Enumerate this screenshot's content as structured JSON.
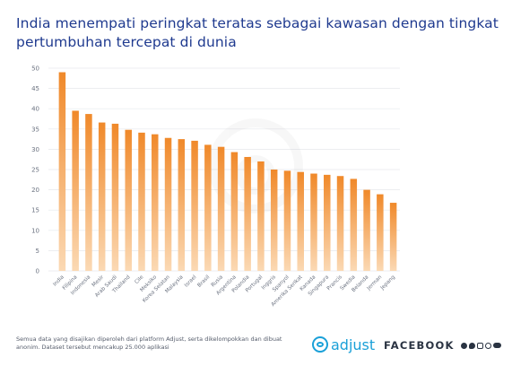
{
  "title": "India menempati peringkat teratas sebagai kawasan dengan tingkat pertumbuhan tercepat di dunia",
  "footnote": "Semua data yang disajikan diperoleh dari platform Adjust, serta dikelompokkan dan dibuat anonim. Dataset tersebut mencakup 25.000 aplikasi",
  "brand": {
    "adjust": "adjust",
    "facebook": "FACEBOOK",
    "accent": "#f39a3b",
    "title_color": "#1f3a8f"
  },
  "icons": [
    "adjust-logo-icon",
    "facebook-icon",
    "messenger-icon",
    "instagram-icon",
    "whatsapp-icon",
    "meta-icon"
  ],
  "chart_data": {
    "type": "bar",
    "title": "India menempati peringkat teratas sebagai kawasan dengan tingkat pertumbuhan tercepat di dunia",
    "xlabel": "",
    "ylabel": "",
    "ylim": [
      0,
      50
    ],
    "yticks": [
      0,
      5,
      10,
      15,
      20,
      25,
      30,
      35,
      40,
      45,
      50
    ],
    "grid": true,
    "legend": "none",
    "categories": [
      "India",
      "Filipina",
      "Indonesia",
      "Mesir",
      "Arab Saudi",
      "Thailand",
      "Cile",
      "Meksiko",
      "Korea Selatan",
      "Malaysia",
      "Israel",
      "Brasil",
      "Rusia",
      "Argentina",
      "Polandia",
      "Portugal",
      "Inggris",
      "Spanyol",
      "Amerika Serikat",
      "Kanada",
      "Singapura",
      "Prancis",
      "Swedia",
      "Belanda",
      "Jerman",
      "Jepang"
    ],
    "values": [
      49,
      39.5,
      38.7,
      36.6,
      36.3,
      34.8,
      34.1,
      33.7,
      32.8,
      32.5,
      32.1,
      31.1,
      30.6,
      29.3,
      28.1,
      27,
      25,
      24.7,
      24.4,
      24,
      23.7,
      23.4,
      22.7,
      20,
      18.9,
      16.8
    ]
  }
}
